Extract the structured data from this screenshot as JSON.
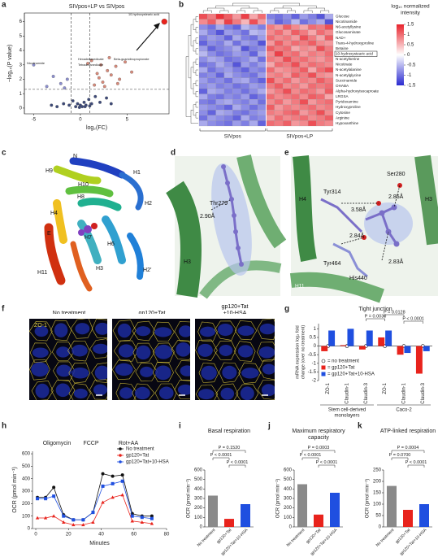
{
  "figure": {
    "panel_labels": [
      "a",
      "b",
      "c",
      "d",
      "e",
      "f",
      "g",
      "h",
      "i",
      "j",
      "k"
    ],
    "c_labels": [
      "N",
      "H9",
      "H1",
      "H10",
      "H8",
      "H4",
      "H2",
      "E",
      "H7",
      "H6",
      "H11",
      "H3",
      "H2′"
    ],
    "d_labels": [
      "Thr279",
      "2.90Å",
      "H3"
    ],
    "e_labels": [
      "H4",
      "Tyr314",
      "Ser280",
      "H3",
      "3.58Å",
      "2.85Å",
      "2.84Å",
      "2.83Å",
      "Tyr464",
      "His440",
      "H11"
    ],
    "f": {
      "conditions": [
        [
          "No treatment"
        ],
        [
          "gp120+Tat"
        ],
        [
          "gp120+Tat",
          "+10-HSA"
        ]
      ],
      "stain": "ZO-1"
    }
  },
  "chart_data": [
    {
      "type": "scatter",
      "title": "SIVpos+LP vs SIVpos",
      "xlabel": "log₂(FC)",
      "ylabel": "−log₁₀(P value)",
      "xlim": [
        -6,
        9.5
      ],
      "xticks": [
        -5,
        0,
        5
      ],
      "ylim": [
        -0.4,
        6.6
      ],
      "yticks": [
        0,
        1,
        2,
        3,
        4,
        5,
        6
      ],
      "thresholds": {
        "x": [
          -1,
          1
        ],
        "y": [
          1.3
        ]
      },
      "series": [
        {
          "color": "#3d4a7a",
          "x": [
            -2.5,
            -1.8,
            -1.2,
            -0.8,
            -0.5,
            -0.3,
            0,
            0.2,
            0.4,
            0.6,
            0.9,
            1.2,
            1.6,
            2.1,
            2.8,
            3.3,
            -3.1,
            -0.1,
            0.5,
            1.0
          ],
          "y": [
            0.1,
            0.3,
            0.2,
            0.5,
            0.1,
            0.3,
            0.2,
            0.1,
            0.4,
            0.2,
            0.6,
            0.3,
            0.8,
            0.4,
            0.7,
            0.3,
            0.2,
            0.05,
            0.1,
            0.15
          ]
        },
        {
          "color": "#d98a7a",
          "x": [
            1.5,
            2.0,
            2.4,
            2.9,
            3.3,
            3.8,
            4.2,
            4.8,
            5.5,
            2.6,
            3.1,
            4.0,
            1.8,
            2.2,
            0.8,
            1.2
          ],
          "y": [
            1.6,
            2.1,
            1.8,
            2.6,
            2.3,
            2.9,
            2.0,
            3.2,
            2.5,
            1.5,
            3.5,
            1.7,
            2.4,
            3.0,
            3.1,
            3.3
          ]
        },
        {
          "color": "#8c8fd0",
          "x": [
            -5.0,
            -3.6,
            -2.9,
            -2.1,
            -1.7,
            -1.4
          ],
          "y": [
            3.0,
            1.5,
            2.2,
            1.7,
            1.4,
            2.0
          ]
        },
        {
          "color": "#e8231c",
          "x": [
            9.0
          ],
          "y": [
            6.0
          ]
        }
      ],
      "annotations": [
        "10-hydroxystearic acid",
        "Nicotinamide",
        "Hexadecanedioate",
        "Tetradecanedioate",
        "Beta-guanidinopropionate"
      ]
    },
    {
      "type": "heatmap",
      "colorbar_title": [
        "log₁₀ normalized",
        "intensity"
      ],
      "groups": [
        "SIVpos",
        "SIVpos+LP"
      ],
      "clim": [
        -1.5,
        1.5
      ],
      "cticks": [
        1.5,
        1,
        0.5,
        0,
        -0.5,
        -1,
        -1.5
      ],
      "colors": [
        "#2a2ad0",
        "#ffffff",
        "#e8232c"
      ],
      "highlight": "10-hydroxystearic acid",
      "rows": [
        "Glucose",
        "Nicotinamide",
        "N6-acetyllysine",
        "Glucosaminate",
        "NAD+",
        "Trans-4-hydroxyproline",
        "Betaine",
        "10-hydroxystearic acid",
        "N-acetylserine",
        "Nicotinate",
        "N-acetylalanine",
        "N-acetylglycine",
        "Succinamide",
        "OHABA",
        "Alpha-hydroxyisocaproate",
        "LRGSA",
        "Pyridoxamine",
        "Hydroxyproline",
        "Cytosine",
        "Arginine",
        "Hypoxanthine"
      ],
      "values": [
        [
          1.2,
          0.9,
          1.4,
          1.1,
          0.7,
          1.3,
          0.6,
          1.0,
          -0.9,
          -1.0,
          -0.8,
          -1.1,
          -0.7,
          -0.9,
          -1.2,
          -0.6
        ],
        [
          0.8,
          1.1,
          0.6,
          1.3,
          0.9,
          0.5,
          1.2,
          0.7,
          -0.7,
          -1.1,
          -0.9,
          -0.5,
          -1.0,
          -0.8,
          -0.6,
          -1.2
        ],
        [
          -0.8,
          -1.0,
          -0.6,
          -0.9,
          -1.1,
          -0.5,
          -0.7,
          -0.9,
          0.9,
          0.7,
          1.1,
          0.8,
          0.6,
          1.0,
          0.9,
          1.2
        ],
        [
          -0.6,
          -0.9,
          -1.2,
          -0.7,
          -0.8,
          -1.0,
          -0.5,
          -0.6,
          0.8,
          1.0,
          0.7,
          1.1,
          0.9,
          0.6,
          1.0,
          0.8
        ],
        [
          -0.9,
          -0.7,
          -0.8,
          -1.1,
          -0.6,
          -0.9,
          -1.0,
          -0.7,
          1.0,
          0.8,
          0.9,
          0.7,
          1.2,
          0.9,
          0.6,
          1.1
        ],
        [
          -1.1,
          -0.8,
          -0.9,
          -0.6,
          -1.0,
          -0.7,
          -0.8,
          -1.2,
          0.7,
          1.1,
          0.8,
          1.0,
          0.9,
          1.1,
          0.8,
          0.7
        ],
        [
          -0.7,
          -1.1,
          -0.9,
          -0.8,
          -0.6,
          -1.2,
          -0.9,
          -0.8,
          1.1,
          0.9,
          1.0,
          0.6,
          0.8,
          0.7,
          1.2,
          0.9
        ],
        [
          -0.5,
          -0.8,
          -1.0,
          -0.9,
          -0.7,
          -0.8,
          -1.1,
          -0.6,
          0.8,
          1.3,
          0.9,
          1.0,
          0.7,
          0.9,
          0.8,
          1.0
        ],
        [
          -0.8,
          -0.6,
          -0.7,
          -1.0,
          -0.9,
          -0.8,
          -0.6,
          -1.0,
          0.9,
          0.8,
          1.2,
          0.9,
          1.0,
          0.8,
          0.7,
          0.9
        ],
        [
          -1.0,
          -0.9,
          -0.6,
          -0.8,
          -1.2,
          -0.7,
          -0.9,
          -0.7,
          0.6,
          1.0,
          0.9,
          1.2,
          0.8,
          1.0,
          0.9,
          0.8
        ],
        [
          -0.6,
          -1.0,
          -0.8,
          -0.7,
          -0.9,
          -1.1,
          -0.8,
          -0.9,
          1.0,
          0.7,
          0.8,
          0.9,
          1.1,
          0.6,
          1.0,
          1.2
        ],
        [
          -0.9,
          -0.8,
          -1.1,
          -0.6,
          -0.8,
          -0.9,
          -1.0,
          -0.7,
          0.8,
          0.9,
          0.7,
          1.1,
          0.9,
          1.2,
          0.8,
          0.7
        ],
        [
          -0.7,
          -0.9,
          -0.8,
          -1.0,
          -0.7,
          -0.6,
          -0.9,
          -1.1,
          1.2,
          0.8,
          1.0,
          0.7,
          0.9,
          0.8,
          1.1,
          0.9
        ],
        [
          -0.8,
          -0.7,
          -0.9,
          -0.8,
          -1.0,
          -0.9,
          -0.7,
          -0.8,
          0.9,
          1.1,
          0.8,
          0.9,
          0.7,
          1.0,
          0.9,
          1.0
        ],
        [
          -1.1,
          -0.6,
          -0.7,
          -0.9,
          -0.8,
          -1.0,
          -0.8,
          -0.6,
          0.7,
          0.9,
          1.2,
          0.8,
          1.0,
          0.9,
          0.7,
          1.1
        ],
        [
          -0.6,
          -0.9,
          -1.0,
          -0.8,
          -0.9,
          -0.7,
          -1.1,
          -0.9,
          1.0,
          0.8,
          0.9,
          1.0,
          0.8,
          1.1,
          1.0,
          0.6
        ],
        [
          -0.9,
          -1.0,
          -0.7,
          -0.6,
          -0.8,
          -0.9,
          -0.7,
          -1.0,
          0.8,
          1.0,
          0.7,
          0.9,
          1.2,
          0.7,
          0.9,
          1.0
        ],
        [
          -0.7,
          -0.8,
          -0.9,
          -1.1,
          -0.6,
          -0.8,
          -1.0,
          -0.8,
          1.1,
          0.7,
          0.9,
          0.8,
          0.9,
          1.0,
          0.8,
          0.9
        ],
        [
          -0.8,
          -1.1,
          -0.6,
          -0.7,
          -0.9,
          -1.0,
          -0.8,
          -0.7,
          0.9,
          0.8,
          1.0,
          1.1,
          0.7,
          0.9,
          1.2,
          0.8
        ],
        [
          -1.0,
          -0.7,
          -0.8,
          -0.9,
          -1.1,
          -0.6,
          -0.9,
          -0.8,
          0.7,
          1.0,
          0.8,
          0.9,
          1.0,
          0.8,
          0.9,
          1.1
        ],
        [
          -0.6,
          -0.8,
          -0.9,
          -1.0,
          -0.7,
          -0.9,
          -0.6,
          -1.1,
          1.0,
          0.9,
          1.1,
          0.7,
          0.8,
          1.2,
          0.9,
          0.8
        ]
      ]
    },
    {
      "type": "grouped-bar",
      "title": "Tight junction",
      "ylabel": [
        "mRNA expression log₂ fold",
        "change (over no treatment)"
      ],
      "categories": [
        "ZO-1",
        "Claudin-1",
        "Claudin-3",
        "ZO-1",
        "Claudin-1",
        "Claudin-3"
      ],
      "groups": [
        [
          "Stem cell-derived",
          "monolayers"
        ],
        [
          "Caco-2"
        ]
      ],
      "ylim": [
        -2,
        1.3
      ],
      "yticks": [
        -2,
        -1.5,
        -1,
        -0.5,
        0,
        0.5,
        1
      ],
      "series": [
        {
          "name": "= no treatment",
          "color": "#ffffff",
          "marker": "open-circle",
          "values": [
            0,
            0,
            0,
            0,
            0,
            0
          ]
        },
        {
          "name": "= gp120+Tat",
          "color": "#e8231c",
          "values": [
            -0.3,
            0.05,
            -0.2,
            0.5,
            -0.5,
            -1.6
          ]
        },
        {
          "name": "= gp120+Tat+10-HSA",
          "color": "#1f4fe0",
          "values": [
            0.9,
            1.0,
            0.9,
            0.9,
            -0.4,
            -0.3
          ]
        }
      ],
      "annotations": [
        "P = 0.0030",
        "P = 0.0128",
        "P < 0.0001"
      ]
    },
    {
      "type": "line",
      "xlabel": "Minutes",
      "ylabel": "OCR (pmol min⁻¹)",
      "xlim": [
        -2,
        80
      ],
      "xticks": [
        0,
        20,
        40,
        60,
        80
      ],
      "ylim": [
        0,
        620
      ],
      "yticks": [
        0,
        100,
        200,
        300,
        400,
        500,
        600
      ],
      "x": [
        1,
        6,
        11,
        17,
        23,
        29,
        35,
        41,
        47,
        53,
        59,
        65,
        71
      ],
      "series": [
        {
          "name": "No treatment",
          "color": "#111111",
          "marker": "circle",
          "values": [
            250,
            250,
            330,
            110,
            70,
            70,
            130,
            440,
            420,
            430,
            120,
            100,
            100
          ]
        },
        {
          "name": "gp120+Tat",
          "color": "#e8231c",
          "marker": "triangle",
          "values": [
            85,
            85,
            100,
            50,
            30,
            30,
            50,
            210,
            250,
            270,
            60,
            50,
            40
          ]
        },
        {
          "name": "gp120+Tat+10-HSA",
          "color": "#1f4fe0",
          "marker": "square",
          "values": [
            240,
            240,
            260,
            100,
            70,
            70,
            130,
            340,
            360,
            380,
            100,
            90,
            80
          ]
        }
      ],
      "annotations": [
        "Oligomycin",
        "FCCP",
        "Rot+AA"
      ]
    },
    {
      "type": "bar",
      "title": [
        "Basal respiration"
      ],
      "ylabel": "OCR (pmol min⁻¹)",
      "categories": [
        "No treatment",
        "gp120+Tat",
        "gp120+Tat+10-HSA"
      ],
      "colors": [
        "#8a8a8a",
        "#e8231c",
        "#1f4fe0"
      ],
      "values": [
        330,
        85,
        240
      ],
      "ylim": [
        0,
        600
      ],
      "yticks": [
        0,
        100,
        200,
        300,
        400,
        500,
        600
      ],
      "annotations": [
        "P = 0.1520",
        "P < 0.0001",
        "P < 0.0001"
      ]
    },
    {
      "type": "bar",
      "title": [
        "Maximum respiratory",
        "capacity"
      ],
      "ylabel": "OCR (pmol min⁻¹)",
      "categories": [
        "No treatment",
        "gp120+Tat",
        "gp120+Tat+10-HSA"
      ],
      "colors": [
        "#8a8a8a",
        "#e8231c",
        "#1f4fe0"
      ],
      "values": [
        450,
        130,
        360
      ],
      "ylim": [
        0,
        600
      ],
      "yticks": [
        0,
        100,
        200,
        300,
        400,
        500,
        600
      ],
      "annotations": [
        "P = 0.0003",
        "P < 0.0001",
        "P < 0.0001"
      ]
    },
    {
      "type": "bar",
      "title": [
        "ATP-linked respiration"
      ],
      "ylabel": "OCR (pmol min⁻¹)",
      "categories": [
        "No treatment",
        "gp120+Tat",
        "gp120+Tat+10-HSA"
      ],
      "colors": [
        "#8a8a8a",
        "#e8231c",
        "#1f4fe0"
      ],
      "values": [
        180,
        75,
        100
      ],
      "ylim": [
        0,
        250
      ],
      "yticks": [
        0,
        50,
        100,
        150,
        200,
        250
      ],
      "annotations": [
        "P = 0.0004",
        "P = 0.0700",
        "P < 0.0001"
      ]
    }
  ]
}
